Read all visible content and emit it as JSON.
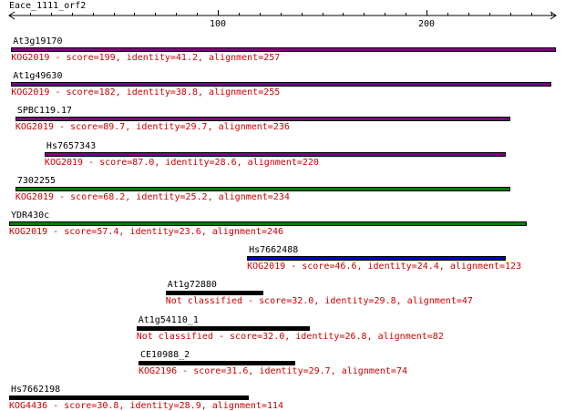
{
  "query": {
    "name": "Eace_1111_orf2",
    "length": 262
  },
  "ruler": {
    "ticks": [
      100,
      200
    ]
  },
  "colors": {
    "desc_text": "#cc0000",
    "KOG2019_violet": "#800080",
    "KOG2019_green": "#008000",
    "KOG2019_blue": "#0000cc",
    "unclassified": "#000000"
  },
  "hits": [
    {
      "name": "At3g19170",
      "start": 1,
      "end": 262,
      "color": "#800080",
      "description": "KOG2019 - score=199, identity=41.2, alignment=257"
    },
    {
      "name": "At1g49630",
      "start": 1,
      "end": 260,
      "color": "#800080",
      "description": "KOG2019 - score=182, identity=38.8, alignment=255"
    },
    {
      "name": "SPBC119.17",
      "start": 3,
      "end": 240,
      "color": "#800080",
      "description": "KOG2019 - score=89.7, identity=29.7, alignment=236"
    },
    {
      "name": "Hs7657343",
      "start": 17,
      "end": 238,
      "color": "#800080",
      "description": "KOG2019 - score=87.0, identity=28.6, alignment=220"
    },
    {
      "name": "7302255",
      "start": 3,
      "end": 240,
      "color": "#008000",
      "description": "KOG2019 - score=68.2, identity=25.2, alignment=234"
    },
    {
      "name": "YDR430c",
      "start": 0,
      "end": 248,
      "color": "#008000",
      "description": "KOG2019 - score=57.4, identity=23.6, alignment=246"
    },
    {
      "name": "Hs7662488",
      "start": 114,
      "end": 238,
      "color": "#0000cc",
      "description": "KOG2019 - score=46.6, identity=24.4, alignment=123"
    },
    {
      "name": "At1g72880",
      "start": 75,
      "end": 122,
      "color": "#000000",
      "description": "Not classified - score=32.0, identity=29.8, alignment=47"
    },
    {
      "name": "At1g54110_1",
      "start": 61,
      "end": 144,
      "color": "#000000",
      "description": "Not classified - score=32.0, identity=26.8, alignment=82"
    },
    {
      "name": "CE10988_2",
      "start": 62,
      "end": 137,
      "color": "#000000",
      "description": "KOG2196 - score=31.6, identity=29.7, alignment=74"
    },
    {
      "name": "Hs7662198",
      "start": 0,
      "end": 115,
      "color": "#000000",
      "description": "KOG4436 - score=30.8, identity=28.9, alignment=114"
    }
  ]
}
